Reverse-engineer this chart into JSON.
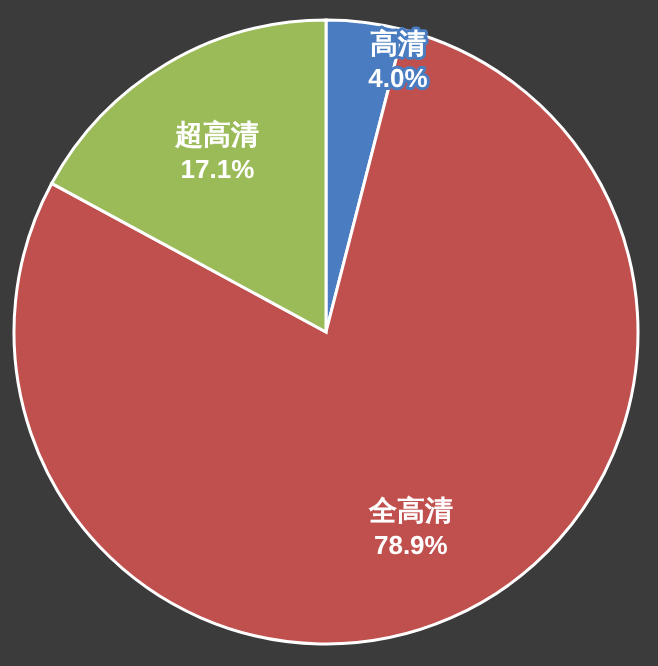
{
  "chart_data": {
    "type": "pie",
    "categories": [
      "高清",
      "全高清",
      "超高清"
    ],
    "values": [
      4.0,
      78.9,
      17.1
    ],
    "colors": [
      "#4a7cc1",
      "#c0504d",
      "#9bbb59"
    ],
    "value_labels": [
      "4.0%",
      "78.9%",
      "17.1%"
    ]
  }
}
